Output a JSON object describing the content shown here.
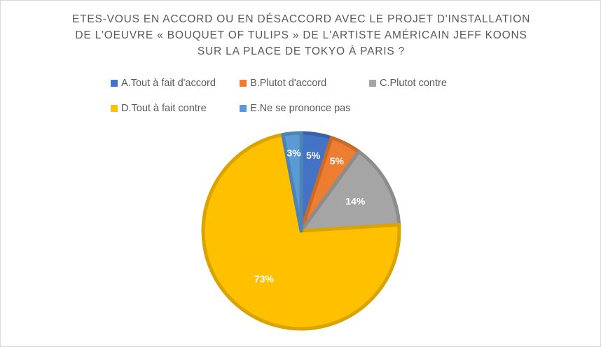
{
  "chart_data": {
    "type": "pie",
    "title_lines": [
      "ETES-VOUS EN ACCORD OU EN DÉSACCORD AVEC LE PROJET D'INSTALLATION",
      "DE L'OEUVRE « BOUQUET OF TULIPS » DE L'ARTISTE AMÉRICAIN JEFF KOONS",
      "SUR LA PLACE DE TOKYO À PARIS ?"
    ],
    "legend_position": "top",
    "slices": [
      {
        "label": "A.Tout à fait d'accord",
        "value": 5,
        "display": "5%",
        "color": "#4472C4"
      },
      {
        "label": "B.Plutot d'accord",
        "value": 5,
        "display": "5%",
        "color": "#ED7D31"
      },
      {
        "label": "C.Plutot contre",
        "value": 14,
        "display": "14%",
        "color": "#A5A5A5"
      },
      {
        "label": "D.Tout à fait contre",
        "value": 73,
        "display": "73%",
        "color": "#FFC000"
      },
      {
        "label": "E.Ne se prononce pas",
        "value": 3,
        "display": "3%",
        "color": "#5B9BD5"
      }
    ]
  }
}
